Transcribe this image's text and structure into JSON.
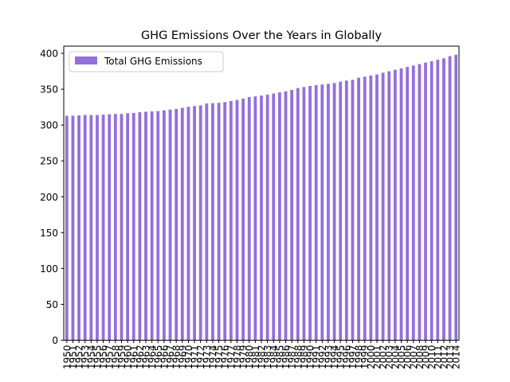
{
  "chart_data": {
    "type": "bar",
    "title": "GHG Emissions Over the Years in Globally",
    "xlabel": "",
    "ylabel": "",
    "ylim": [
      0,
      410
    ],
    "yticks": [
      0,
      50,
      100,
      150,
      200,
      250,
      300,
      350,
      400
    ],
    "grid": false,
    "legend_position": "top-left",
    "categories": [
      "1950",
      "1951",
      "1952",
      "1953",
      "1954",
      "1955",
      "1956",
      "1957",
      "1958",
      "1959",
      "1960",
      "1961",
      "1962",
      "1963",
      "1964",
      "1965",
      "1966",
      "1967",
      "1968",
      "1969",
      "1970",
      "1971",
      "1972",
      "1973",
      "1974",
      "1975",
      "1976",
      "1977",
      "1978",
      "1979",
      "1980",
      "1981",
      "1982",
      "1983",
      "1984",
      "1985",
      "1986",
      "1987",
      "1988",
      "1989",
      "1990",
      "1991",
      "1992",
      "1993",
      "1994",
      "1995",
      "1996",
      "1997",
      "1998",
      "1999",
      "2000",
      "2001",
      "2002",
      "2003",
      "2004",
      "2005",
      "2006",
      "2007",
      "2008",
      "2009",
      "2010",
      "2011",
      "2012",
      "2013",
      "2014"
    ],
    "series": [
      {
        "name": "Total GHG Emissions",
        "color": "#9370db",
        "values": [
          313,
          313,
          313.5,
          314,
          314,
          314,
          314.5,
          315,
          315.5,
          315.5,
          316.5,
          317,
          318,
          318.5,
          319,
          319.5,
          320.5,
          321.5,
          322.5,
          324,
          325.5,
          326.5,
          327.5,
          330,
          330.5,
          331,
          332,
          333.5,
          335,
          337,
          339,
          340,
          341,
          342.5,
          344,
          345.5,
          347,
          349,
          351.5,
          353,
          354.5,
          355.5,
          356.5,
          357.5,
          358.5,
          360.5,
          362,
          363,
          366,
          367.5,
          369,
          370.5,
          373,
          375,
          377,
          379,
          381,
          383,
          385,
          387,
          389,
          391,
          393,
          396,
          398
        ]
      }
    ]
  }
}
